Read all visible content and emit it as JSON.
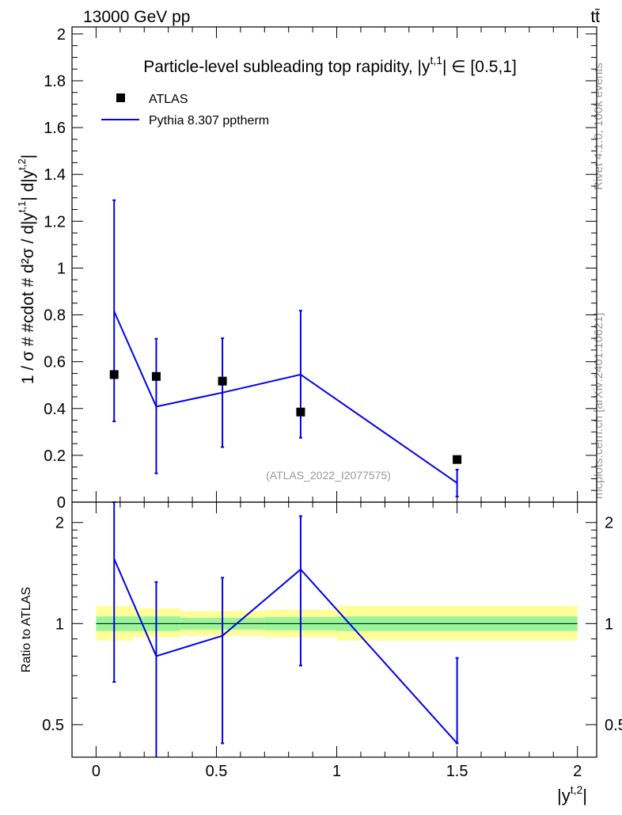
{
  "header": {
    "left": "13000 GeV pp",
    "right": "tt̄"
  },
  "side_labels": {
    "rivet": "Rivet 4.1.0,  100k events",
    "mcplots": "mcplots.cern.ch [arXiv:2401.10621]"
  },
  "colors": {
    "data": "#000000",
    "mc": "#0000ee",
    "band_inner": "#99f599",
    "band_outer": "#ffff99",
    "watermark": "#999999"
  },
  "chart_data": [
    {
      "type": "line",
      "title": "Particle-level subleading top rapidity, |y^{t,1}| ∈ [0.5,1]",
      "title_main": "Particle-level subleading top rapidity, |y",
      "title_sup": "t,1",
      "title_tail": "| ∈ [0.5,1]",
      "ylabel": "1 / σ # #cdot # d²σ / d|y^{t,1}| d|y^{t,2}|",
      "ylabel_text": "1 / σ # #cdot # d²σ / d|y",
      "ylabel_sup1": "t,1",
      "ylabel_mid": "| d|y",
      "ylabel_sup2": "t,2",
      "ylabel_tail": "|",
      "xlim": [
        -0.1,
        2.08
      ],
      "ylim": [
        0,
        2.03
      ],
      "yticks": [
        0,
        0.2,
        0.4,
        0.6,
        0.8,
        1,
        1.2,
        1.4,
        1.6,
        1.8,
        2
      ],
      "ytick_labels": [
        "0",
        "0.2",
        "0.4",
        "0.6",
        "0.8",
        "1",
        "1.2",
        "1.4",
        "1.6",
        "1.8",
        "2"
      ],
      "legend": {
        "position": "top-left",
        "data_label": "ATLAS",
        "mc_label": "Pythia 8.307 pptherm"
      },
      "watermark": "(ATLAS_2022_I2077575)",
      "bin_edges": [
        0,
        0.15,
        0.35,
        0.7,
        1.0,
        2.0
      ],
      "series": [
        {
          "name": "ATLAS",
          "x": [
            0.075,
            0.25,
            0.525,
            0.85,
            1.5
          ],
          "y": [
            0.545,
            0.537,
            0.517,
            0.385,
            0.182
          ],
          "yerr_lo": [
            0.0,
            0.0,
            0.0,
            0.0,
            0.0
          ],
          "yerr_hi": [
            0.0,
            0.0,
            0.0,
            0.0,
            0.0
          ]
        },
        {
          "name": "Pythia 8.307 pptherm",
          "x": [
            0.075,
            0.25,
            0.525,
            0.85,
            1.5
          ],
          "y": [
            0.815,
            0.408,
            0.468,
            0.545,
            0.082
          ],
          "yerr_lo": [
            0.47,
            0.285,
            0.233,
            0.27,
            0.058
          ],
          "yerr_hi": [
            0.475,
            0.29,
            0.232,
            0.273,
            0.057
          ]
        }
      ]
    },
    {
      "type": "line",
      "ylabel": "Ratio to ATLAS",
      "xlabel": "|y^{t,2}|",
      "xlabel_main": "|y",
      "xlabel_sup": "t,2",
      "xlabel_tail": "|",
      "xlim": [
        -0.1,
        2.08
      ],
      "ylim": [
        0.4,
        2.3
      ],
      "yscale": "log",
      "yticks": [
        0.5,
        1,
        2
      ],
      "ytick_labels": [
        "0.5",
        "1",
        "2"
      ],
      "xticks": [
        0,
        0.5,
        1,
        1.5,
        2
      ],
      "xtick_labels": [
        "0",
        "0.5",
        "1",
        "1.5",
        "2"
      ],
      "reference_line": 1,
      "band": {
        "x_edges": [
          0,
          0.15,
          0.35,
          0.7,
          1.0,
          2.0
        ],
        "inner_lo": [
          0.95,
          0.95,
          0.96,
          0.955,
          0.95
        ],
        "inner_hi": [
          1.05,
          1.05,
          1.04,
          1.045,
          1.05
        ],
        "outer_lo": [
          0.89,
          0.91,
          0.92,
          0.91,
          0.89
        ],
        "outer_hi": [
          1.13,
          1.11,
          1.09,
          1.1,
          1.13
        ]
      },
      "series": [
        {
          "name": "Pythia 8.307 pptherm / ATLAS",
          "x": [
            0.075,
            0.25,
            0.525,
            0.85,
            1.5
          ],
          "y": [
            1.56,
            0.8,
            0.92,
            1.45,
            0.44
          ],
          "yerr_lo": [
            0.89,
            0.43,
            0.48,
            0.7,
            0.0
          ],
          "yerr_hi": [
            0.82,
            0.53,
            0.45,
            0.64,
            0.35
          ]
        }
      ]
    }
  ]
}
